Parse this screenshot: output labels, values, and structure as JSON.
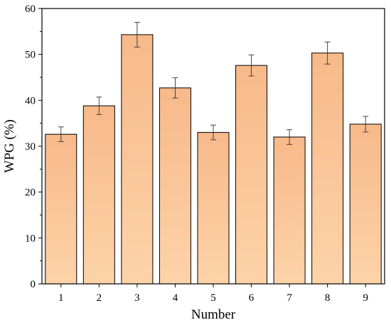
{
  "chart_data": {
    "type": "bar",
    "xlabel": "Number",
    "ylabel": "WPG (%)",
    "categories": [
      "1",
      "2",
      "3",
      "4",
      "5",
      "6",
      "7",
      "8",
      "9"
    ],
    "values": [
      32.6,
      38.8,
      54.3,
      42.7,
      33.0,
      47.6,
      32.0,
      50.3,
      34.8
    ],
    "errors": [
      1.6,
      1.9,
      2.7,
      2.2,
      1.6,
      2.3,
      1.6,
      2.4,
      1.7
    ],
    "ylim": [
      0,
      60
    ],
    "yticks": [
      "0",
      "10",
      "20",
      "30",
      "40",
      "50",
      "60"
    ],
    "grid": false,
    "bar_fill_top": "#f7b98a",
    "bar_fill_bottom": "#fdd3a8",
    "bar_edge": "#000000"
  }
}
